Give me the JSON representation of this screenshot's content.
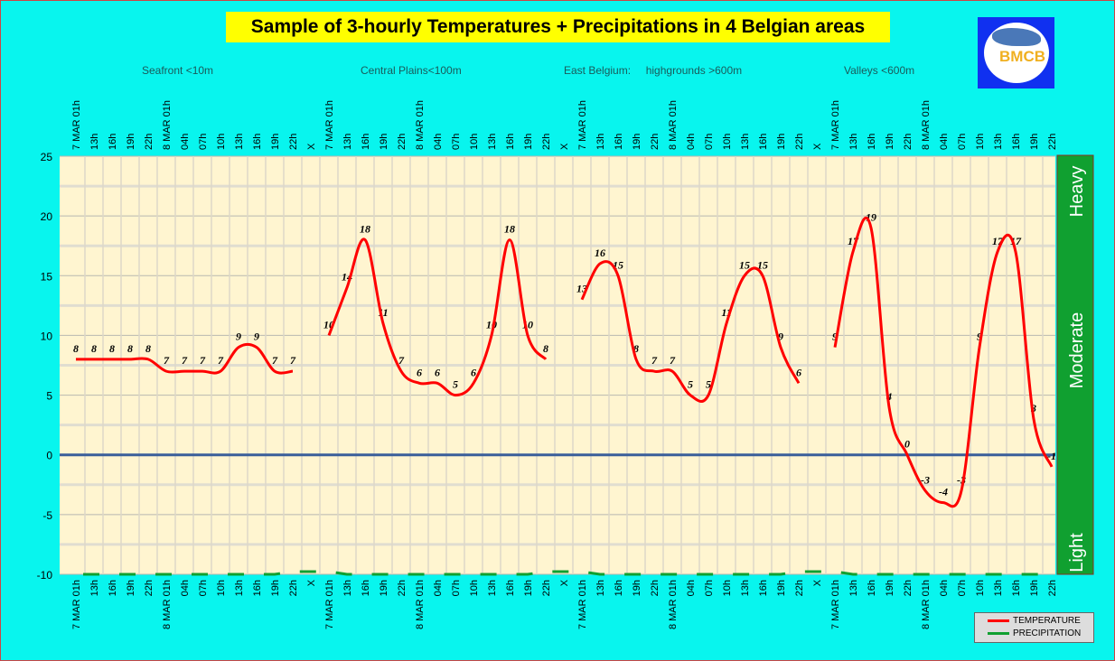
{
  "chart_data": {
    "type": "line",
    "title": "Sample of 3-hourly Temperatures + Precipitations in 4 Belgian areas",
    "area_labels": [
      "Seafront <10m",
      "Central Plains<100m",
      "East Belgium:     highgrounds >600m",
      "Valleys <600m"
    ],
    "categories": [
      "7 MAR 01h",
      "13h",
      "16h",
      "19h",
      "22h",
      "8 MAR 01h",
      "04h",
      "07h",
      "10h",
      "13h",
      "16h",
      "19h",
      "22h",
      "X",
      "7 MAR 01h",
      "13h",
      "16h",
      "19h",
      "22h",
      "8 MAR 01h",
      "04h",
      "07h",
      "10h",
      "13h",
      "16h",
      "19h",
      "22h",
      "X",
      "7 MAR 01h",
      "13h",
      "16h",
      "19h",
      "22h",
      "8 MAR 01h",
      "04h",
      "07h",
      "10h",
      "13h",
      "16h",
      "19h",
      "22h",
      "X",
      "7 MAR 01h",
      "13h",
      "16h",
      "19h",
      "22h",
      "8 MAR 01h",
      "04h",
      "07h",
      "10h",
      "13h",
      "16h",
      "19h",
      "22h"
    ],
    "ylim": [
      -10,
      25
    ],
    "yticks": [
      25,
      20,
      15,
      10,
      5,
      0,
      -5,
      -10
    ],
    "grid": true,
    "series": [
      {
        "name": "TEMPERATURE",
        "color": "#ff0000",
        "values": [
          8,
          8,
          8,
          8,
          8,
          7,
          7,
          7,
          7,
          9,
          9,
          7,
          7,
          null,
          10,
          14,
          18,
          11,
          7,
          6,
          6,
          5,
          6,
          10,
          18,
          10,
          8,
          null,
          13,
          16,
          15,
          8,
          7,
          7,
          5,
          5,
          11,
          15,
          15,
          9,
          6,
          null,
          9,
          17,
          19,
          4,
          0,
          -3,
          -4,
          -3,
          9,
          17,
          17,
          3,
          -1
        ]
      },
      {
        "name": "PRECIPITATION",
        "color": "#10a030",
        "values": [
          0,
          0,
          0,
          0,
          0,
          0,
          0,
          0,
          0,
          0,
          0,
          0,
          0.3,
          0.3,
          0.3,
          0,
          0,
          0,
          0,
          0,
          0,
          0,
          0,
          0,
          0,
          0,
          0.3,
          0.3,
          0.3,
          0,
          0,
          0,
          0,
          0,
          0,
          0,
          0,
          0,
          0,
          0,
          0.3,
          0.3,
          0.3,
          0,
          0,
          0,
          0,
          0,
          0,
          0,
          0,
          0,
          0,
          0,
          0
        ]
      }
    ],
    "precip_scale": [
      "Heavy",
      "Moderate",
      "Light"
    ],
    "legend_position": "bottom-right",
    "zero_line_color": "#3a5f9a",
    "plot_bg": "#fff5d0",
    "background": "#08f5ee"
  },
  "logo_text": "BMCB"
}
